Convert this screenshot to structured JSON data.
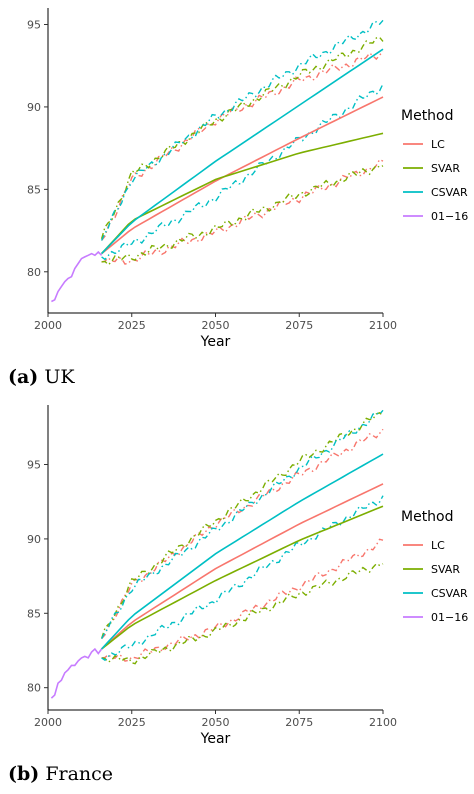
{
  "chart_data": [
    {
      "type": "line",
      "caption_letter": "(a)",
      "caption_text": "UK",
      "xlabel": "Year",
      "ylabel": "",
      "xlim": [
        2000,
        2100
      ],
      "ylim": [
        77.5,
        96
      ],
      "xticks": [
        2000,
        2025,
        2050,
        2075,
        2100
      ],
      "yticks": [
        80,
        85,
        90,
        95
      ],
      "legend_title": "Method",
      "legend_placement": "right",
      "grid": false,
      "legend": [
        {
          "name": "LC",
          "color": "#F8766D"
        },
        {
          "name": "SVAR",
          "color": "#7CAE00"
        },
        {
          "name": "CSVAR",
          "color": "#00BFC4"
        },
        {
          "name": "01−16",
          "color": "#C77CFF"
        }
      ],
      "historical": {
        "name": "01−16",
        "color": "#C77CFF",
        "x": [
          2001,
          2002,
          2003,
          2004,
          2005,
          2006,
          2007,
          2008,
          2009,
          2010,
          2011,
          2012,
          2013,
          2014,
          2015,
          2016
        ],
        "y": [
          78.2,
          78.3,
          78.8,
          79.1,
          79.4,
          79.6,
          79.7,
          80.2,
          80.5,
          80.8,
          80.9,
          81.0,
          81.1,
          81.0,
          81.2,
          81.0
        ]
      },
      "series": [
        {
          "name": "LC",
          "color": "#F8766D",
          "x": [
            2016,
            2025,
            2050,
            2075,
            2100
          ],
          "mean": [
            81.1,
            82.6,
            85.5,
            88.1,
            90.6
          ],
          "upper": [
            81.9,
            85.6,
            89.2,
            91.6,
            93.3
          ],
          "lower": [
            80.6,
            80.7,
            82.4,
            84.5,
            86.6
          ]
        },
        {
          "name": "SVAR",
          "color": "#7CAE00",
          "x": [
            2016,
            2025,
            2050,
            2075,
            2100
          ],
          "mean": [
            81.1,
            83.1,
            85.6,
            87.2,
            88.4
          ],
          "upper": [
            82.0,
            85.9,
            89.2,
            91.9,
            94.2
          ],
          "lower": [
            80.6,
            80.9,
            82.6,
            84.7,
            86.5
          ]
        },
        {
          "name": "CSVAR",
          "color": "#00BFC4",
          "x": [
            2016,
            2025,
            2050,
            2075,
            2100
          ],
          "mean": [
            81.1,
            83.0,
            86.7,
            90.1,
            93.5
          ],
          "upper": [
            81.9,
            85.6,
            89.4,
            92.5,
            95.2
          ],
          "lower": [
            80.9,
            81.7,
            84.5,
            88.0,
            91.3
          ]
        }
      ]
    },
    {
      "type": "line",
      "caption_letter": "(b)",
      "caption_text": "France",
      "xlabel": "Year",
      "ylabel": "",
      "xlim": [
        2000,
        2100
      ],
      "ylim": [
        78.5,
        99
      ],
      "xticks": [
        2000,
        2025,
        2050,
        2075,
        2100
      ],
      "yticks": [
        80,
        85,
        90,
        95
      ],
      "legend_title": "Method",
      "legend_placement": "right",
      "grid": false,
      "legend": [
        {
          "name": "LC",
          "color": "#F8766D"
        },
        {
          "name": "SVAR",
          "color": "#7CAE00"
        },
        {
          "name": "CSVAR",
          "color": "#00BFC4"
        },
        {
          "name": "01−16",
          "color": "#C77CFF"
        }
      ],
      "historical": {
        "name": "01−16",
        "color": "#C77CFF",
        "x": [
          2001,
          2002,
          2003,
          2004,
          2005,
          2006,
          2007,
          2008,
          2009,
          2010,
          2011,
          2012,
          2013,
          2014,
          2015,
          2016
        ],
        "y": [
          79.3,
          79.5,
          80.3,
          80.5,
          81.0,
          81.2,
          81.5,
          81.5,
          81.8,
          82.0,
          82.1,
          82.0,
          82.4,
          82.6,
          82.3,
          82.6
        ]
      },
      "series": [
        {
          "name": "LC",
          "color": "#F8766D",
          "x": [
            2016,
            2025,
            2050,
            2075,
            2100
          ],
          "mean": [
            82.6,
            84.4,
            88.0,
            91.0,
            93.7
          ],
          "upper": [
            83.3,
            86.9,
            91.0,
            94.3,
            97.3
          ],
          "lower": [
            82.0,
            82.0,
            84.0,
            86.8,
            89.8
          ]
        },
        {
          "name": "SVAR",
          "color": "#7CAE00",
          "x": [
            2016,
            2025,
            2050,
            2075,
            2100
          ],
          "mean": [
            82.6,
            84.2,
            87.2,
            89.9,
            92.2
          ],
          "upper": [
            83.3,
            87.1,
            91.2,
            95.2,
            98.5
          ],
          "lower": [
            82.0,
            81.8,
            83.8,
            86.3,
            88.4
          ]
        },
        {
          "name": "CSVAR",
          "color": "#00BFC4",
          "x": [
            2016,
            2025,
            2050,
            2075,
            2100
          ],
          "mean": [
            82.6,
            84.8,
            89.0,
            92.5,
            95.7
          ],
          "upper": [
            83.3,
            86.7,
            90.6,
            94.7,
            98.6
          ],
          "lower": [
            82.0,
            82.8,
            85.9,
            89.6,
            92.8
          ]
        }
      ]
    }
  ]
}
